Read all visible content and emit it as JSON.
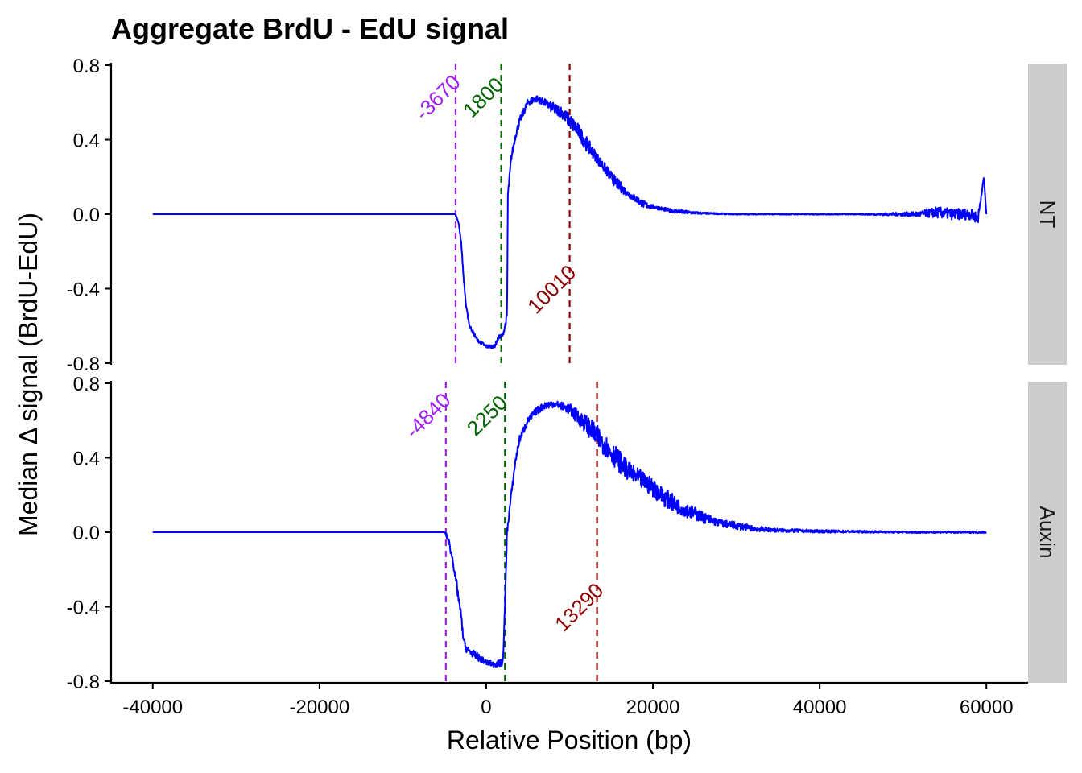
{
  "chart_data": {
    "type": "line",
    "title": "Aggregate BrdU - EdU signal",
    "xlabel": "Relative Position (bp)",
    "ylabel": "Median Δ signal (BrdU-EdU)",
    "xlim": [
      -45000,
      65000
    ],
    "ylim": [
      -0.8,
      0.8
    ],
    "x_ticks": [
      -40000,
      -20000,
      0,
      20000,
      40000,
      60000
    ],
    "x_tick_labels": [
      "-40000",
      "-20000",
      "0",
      "20000",
      "40000",
      "60000"
    ],
    "y_ticks": [
      -0.8,
      -0.4,
      0.0,
      0.4,
      0.8
    ],
    "y_tick_labels": [
      "-0.8",
      "-0.4",
      "0.0",
      "0.4",
      "0.8"
    ],
    "line_color": "#0000ff",
    "grid": false,
    "panels": [
      {
        "strip": "NT",
        "series": [
          {
            "x": [
              -40000,
              -30000,
              -20000,
              -10000,
              -5000,
              -4000,
              -3670,
              -3300,
              -3000,
              -2700,
              -2400,
              -2000,
              -1000,
              0,
              1000,
              1500,
              2000,
              2500,
              2600,
              3000,
              3500,
              4000,
              5000,
              6000,
              7000,
              8000,
              9000,
              10000,
              11000,
              12000,
              13000,
              14000,
              15000,
              16000,
              17000,
              18000,
              19000,
              20000,
              22000,
              24000,
              26000,
              30000,
              35000,
              40000,
              45000,
              50000,
              52000,
              54000,
              56000,
              58000,
              59000,
              59700,
              60000
            ],
            "y": [
              0.0,
              0.0,
              0.0,
              0.0,
              0.0,
              0.0,
              0.0,
              -0.05,
              -0.15,
              -0.35,
              -0.5,
              -0.6,
              -0.68,
              -0.71,
              -0.71,
              -0.66,
              -0.65,
              -0.55,
              0.1,
              0.3,
              0.42,
              0.5,
              0.6,
              0.62,
              0.6,
              0.57,
              0.55,
              0.5,
              0.45,
              0.38,
              0.32,
              0.26,
              0.2,
              0.15,
              0.11,
              0.08,
              0.05,
              0.04,
              0.02,
              0.01,
              0.005,
              0.0,
              0.0,
              0.0,
              0.0,
              0.0,
              0.0,
              0.01,
              0.0,
              0.0,
              -0.02,
              0.2,
              0.0
            ],
            "noise_amplitude": [
              0.0,
              0.0,
              0.0,
              0.0,
              0.0,
              0.0,
              0.0,
              0.0,
              0.01,
              0.01,
              0.01,
              0.01,
              0.01,
              0.01,
              0.01,
              0.01,
              0.01,
              0.02,
              0.02,
              0.02,
              0.02,
              0.02,
              0.02,
              0.02,
              0.02,
              0.03,
              0.03,
              0.04,
              0.04,
              0.04,
              0.03,
              0.03,
              0.03,
              0.03,
              0.02,
              0.02,
              0.02,
              0.01,
              0.01,
              0.01,
              0.005,
              0.003,
              0.003,
              0.003,
              0.003,
              0.01,
              0.015,
              0.03,
              0.03,
              0.03,
              0.03,
              0.0,
              0.0
            ]
          }
        ],
        "vlines": [
          {
            "x": -3670,
            "label": "-3670",
            "color": "#a020f0",
            "label_y": 0.6
          },
          {
            "x": 1800,
            "label": "1800",
            "color": "#006400",
            "label_y": 0.6
          },
          {
            "x": 10010,
            "label": "10010",
            "color": "#8b0000",
            "label_y": -0.43
          }
        ]
      },
      {
        "strip": "Auxin",
        "series": [
          {
            "x": [
              -40000,
              -30000,
              -20000,
              -10000,
              -6000,
              -5000,
              -4840,
              -4500,
              -4000,
              -3500,
              -3000,
              -2800,
              -2500,
              -2000,
              -1000,
              0,
              1000,
              2000,
              2250,
              2500,
              3000,
              3500,
              4000,
              5000,
              6000,
              7000,
              8000,
              9000,
              10000,
              11000,
              12000,
              13000,
              14000,
              15000,
              16000,
              17000,
              18000,
              19000,
              20000,
              21000,
              22000,
              23000,
              24000,
              26000,
              28000,
              30000,
              32000,
              35000,
              40000,
              45000,
              50000,
              55000,
              60000
            ],
            "y": [
              0.0,
              0.0,
              0.0,
              0.0,
              0.0,
              0.0,
              -0.01,
              -0.05,
              -0.15,
              -0.3,
              -0.45,
              -0.55,
              -0.62,
              -0.64,
              -0.67,
              -0.7,
              -0.71,
              -0.7,
              -0.4,
              0.0,
              0.2,
              0.38,
              0.5,
              0.6,
              0.65,
              0.68,
              0.69,
              0.68,
              0.66,
              0.62,
              0.58,
              0.53,
              0.48,
              0.43,
              0.38,
              0.33,
              0.3,
              0.27,
              0.24,
              0.2,
              0.17,
              0.14,
              0.12,
              0.08,
              0.05,
              0.035,
              0.02,
              0.01,
              0.005,
              0.003,
              0.0,
              0.0,
              0.0
            ],
            "noise_amplitude": [
              0.0,
              0.0,
              0.0,
              0.0,
              0.0,
              0.0,
              0.01,
              0.02,
              0.02,
              0.03,
              0.02,
              0.02,
              0.02,
              0.02,
              0.02,
              0.015,
              0.015,
              0.02,
              0.02,
              0.02,
              0.02,
              0.02,
              0.02,
              0.02,
              0.02,
              0.02,
              0.02,
              0.02,
              0.03,
              0.04,
              0.05,
              0.06,
              0.06,
              0.06,
              0.06,
              0.05,
              0.05,
              0.05,
              0.05,
              0.05,
              0.05,
              0.04,
              0.04,
              0.03,
              0.02,
              0.02,
              0.015,
              0.01,
              0.008,
              0.006,
              0.005,
              0.005,
              0.005
            ]
          }
        ],
        "vlines": [
          {
            "x": -4840,
            "label": "-4840",
            "color": "#a020f0",
            "label_y": 0.6
          },
          {
            "x": 2250,
            "label": "2250",
            "color": "#006400",
            "label_y": 0.6
          },
          {
            "x": 13290,
            "label": "13290",
            "color": "#8b0000",
            "label_y": -0.43
          }
        ]
      }
    ]
  }
}
